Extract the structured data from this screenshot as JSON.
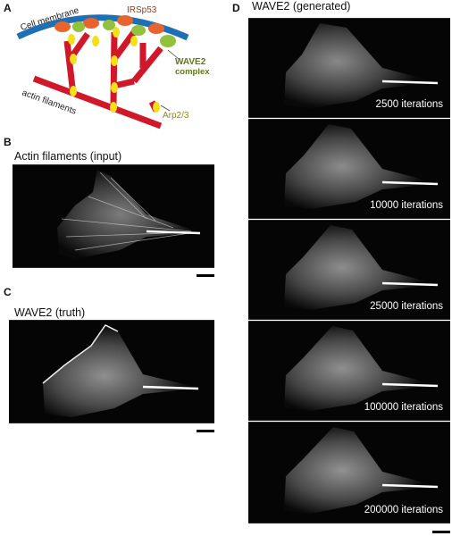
{
  "panel_a": {
    "letter": "A",
    "labels": {
      "cell_membrane": "Cell membrane",
      "irsp53": "IRSp53",
      "wave2_line1": "WAVE2",
      "wave2_line2": "complex",
      "actin": "actin filaments",
      "arp": "Arp2/3"
    },
    "colors": {
      "membrane": "#1e6fb5",
      "actin": "#d0182a",
      "irsp53": "#e8642c",
      "wave2": "#92c13e",
      "arp": "#f2e018",
      "irsp53_text": "#9b3a14",
      "wave2_text": "#5d7a1a",
      "arp_text": "#9a8518"
    }
  },
  "panel_b": {
    "letter": "B",
    "title": "Actin filaments (input)"
  },
  "panel_c": {
    "letter": "C",
    "title": "WAVE2 (truth)"
  },
  "panel_d": {
    "letter": "D",
    "title": "WAVE2 (generated)",
    "iterations": [
      "2500 iterations",
      "10000 iterations",
      "25000 iterations",
      "100000 iterations",
      "200000 iterations"
    ]
  }
}
